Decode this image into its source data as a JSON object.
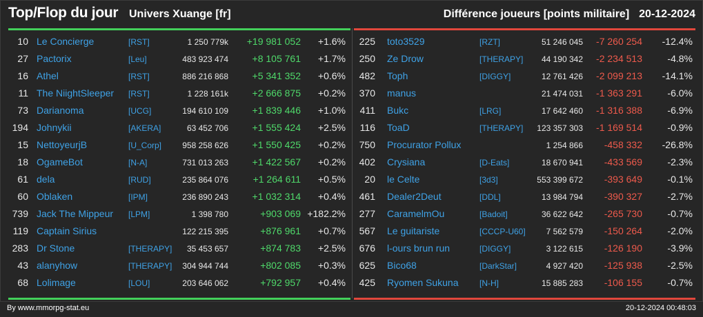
{
  "header": {
    "title": "Top/Flop du jour",
    "server": "Univers Xuange [fr]",
    "subtitle": "Différence joueurs [points militaire]",
    "date": "20-12-2024"
  },
  "colors": {
    "gain": "#4fd96a",
    "loss": "#ee5a4c",
    "link": "#3fa2e6",
    "background": "#262626"
  },
  "top": [
    {
      "rank": "10",
      "name": "Le Concierge",
      "alliance": "[RST]",
      "points": "1 250 779k",
      "diff": "+19 981 052",
      "pct": "+1.6%"
    },
    {
      "rank": "27",
      "name": "Pactorix",
      "alliance": "[Leu]",
      "points": "483 923 474",
      "diff": "+8 105 761",
      "pct": "+1.7%"
    },
    {
      "rank": "16",
      "name": "Athel",
      "alliance": "[RST]",
      "points": "886 216 868",
      "diff": "+5 341 352",
      "pct": "+0.6%"
    },
    {
      "rank": "11",
      "name": "The NiightSleeper",
      "alliance": "[RST]",
      "points": "1 228 161k",
      "diff": "+2 666 875",
      "pct": "+0.2%"
    },
    {
      "rank": "73",
      "name": "Darianoma",
      "alliance": "[UCG]",
      "points": "194 610 109",
      "diff": "+1 839 446",
      "pct": "+1.0%"
    },
    {
      "rank": "194",
      "name": "Johnykii",
      "alliance": "[AKERA]",
      "points": "63 452 706",
      "diff": "+1 555 424",
      "pct": "+2.5%"
    },
    {
      "rank": "15",
      "name": "NettoyeurjB",
      "alliance": "[U_Corp]",
      "points": "958 258 626",
      "diff": "+1 550 425",
      "pct": "+0.2%"
    },
    {
      "rank": "18",
      "name": "OgameBot",
      "alliance": "[N-A]",
      "points": "731 013 263",
      "diff": "+1 422 567",
      "pct": "+0.2%"
    },
    {
      "rank": "61",
      "name": "dela",
      "alliance": "[RUD]",
      "points": "235 864 076",
      "diff": "+1 264 611",
      "pct": "+0.5%"
    },
    {
      "rank": "60",
      "name": "Oblaken",
      "alliance": "[IPM]",
      "points": "236 890 243",
      "diff": "+1 032 314",
      "pct": "+0.4%"
    },
    {
      "rank": "739",
      "name": "Jack The Mippeur",
      "alliance": "[LPM]",
      "points": "1 398 780",
      "diff": "+903 069",
      "pct": "+182.2%"
    },
    {
      "rank": "119",
      "name": "Captain Sirius",
      "alliance": "",
      "points": "122 215 395",
      "diff": "+876 961",
      "pct": "+0.7%"
    },
    {
      "rank": "283",
      "name": "Dr Stone",
      "alliance": "[THERAPY]",
      "points": "35 453 657",
      "diff": "+874 783",
      "pct": "+2.5%"
    },
    {
      "rank": "43",
      "name": "alanyhow",
      "alliance": "[THERAPY]",
      "points": "304 944 744",
      "diff": "+802 085",
      "pct": "+0.3%"
    },
    {
      "rank": "68",
      "name": "Lolimage",
      "alliance": "[LOU]",
      "points": "203 646 062",
      "diff": "+792 957",
      "pct": "+0.4%"
    }
  ],
  "flop": [
    {
      "rank": "225",
      "name": "toto3529",
      "alliance": "[RZT]",
      "points": "51 246 045",
      "diff": "-7 260 254",
      "pct": "-12.4%"
    },
    {
      "rank": "250",
      "name": "Ze Drow",
      "alliance": "[THERAPY]",
      "points": "44 190 342",
      "diff": "-2 234 513",
      "pct": "-4.8%"
    },
    {
      "rank": "482",
      "name": "Toph",
      "alliance": "[DIGGY]",
      "points": "12 761 426",
      "diff": "-2 099 213",
      "pct": "-14.1%"
    },
    {
      "rank": "370",
      "name": "manus",
      "alliance": "",
      "points": "21 474 031",
      "diff": "-1 363 291",
      "pct": "-6.0%"
    },
    {
      "rank": "411",
      "name": "Bukc",
      "alliance": "[LRG]",
      "points": "17 642 460",
      "diff": "-1 316 388",
      "pct": "-6.9%"
    },
    {
      "rank": "116",
      "name": "ToaD",
      "alliance": "[THERAPY]",
      "points": "123 357 303",
      "diff": "-1 169 514",
      "pct": "-0.9%"
    },
    {
      "rank": "750",
      "name": "Procurator Pollux",
      "alliance": "",
      "points": "1 254 866",
      "diff": "-458 332",
      "pct": "-26.8%"
    },
    {
      "rank": "402",
      "name": "Crysiana",
      "alliance": "[D-Eats]",
      "points": "18 670 941",
      "diff": "-433 569",
      "pct": "-2.3%"
    },
    {
      "rank": "20",
      "name": "le Celte",
      "alliance": "[3d3]",
      "points": "553 399 672",
      "diff": "-393 649",
      "pct": "-0.1%"
    },
    {
      "rank": "461",
      "name": "Dealer2Deut",
      "alliance": "[DDL]",
      "points": "13 984 794",
      "diff": "-390 327",
      "pct": "-2.7%"
    },
    {
      "rank": "277",
      "name": "CaramelmOu",
      "alliance": "[Badoit]",
      "points": "36 622 642",
      "diff": "-265 730",
      "pct": "-0.7%"
    },
    {
      "rank": "567",
      "name": "Le guitariste",
      "alliance": "[CCCP-U60]",
      "points": "7 562 579",
      "diff": "-150 264",
      "pct": "-2.0%"
    },
    {
      "rank": "676",
      "name": "l-ours brun run",
      "alliance": "[DIGGY]",
      "points": "3 122 615",
      "diff": "-126 190",
      "pct": "-3.9%"
    },
    {
      "rank": "625",
      "name": "Bico68",
      "alliance": "[DarkStar]",
      "points": "4 927 420",
      "diff": "-125 938",
      "pct": "-2.5%"
    },
    {
      "rank": "425",
      "name": "Ryomen Sukuna",
      "alliance": "[N-H]",
      "points": "15 885 283",
      "diff": "-106 155",
      "pct": "-0.7%"
    }
  ],
  "footer": {
    "credit": "By www.mmorpg-stat.eu",
    "timestamp": "20-12-2024 00:48:03"
  }
}
